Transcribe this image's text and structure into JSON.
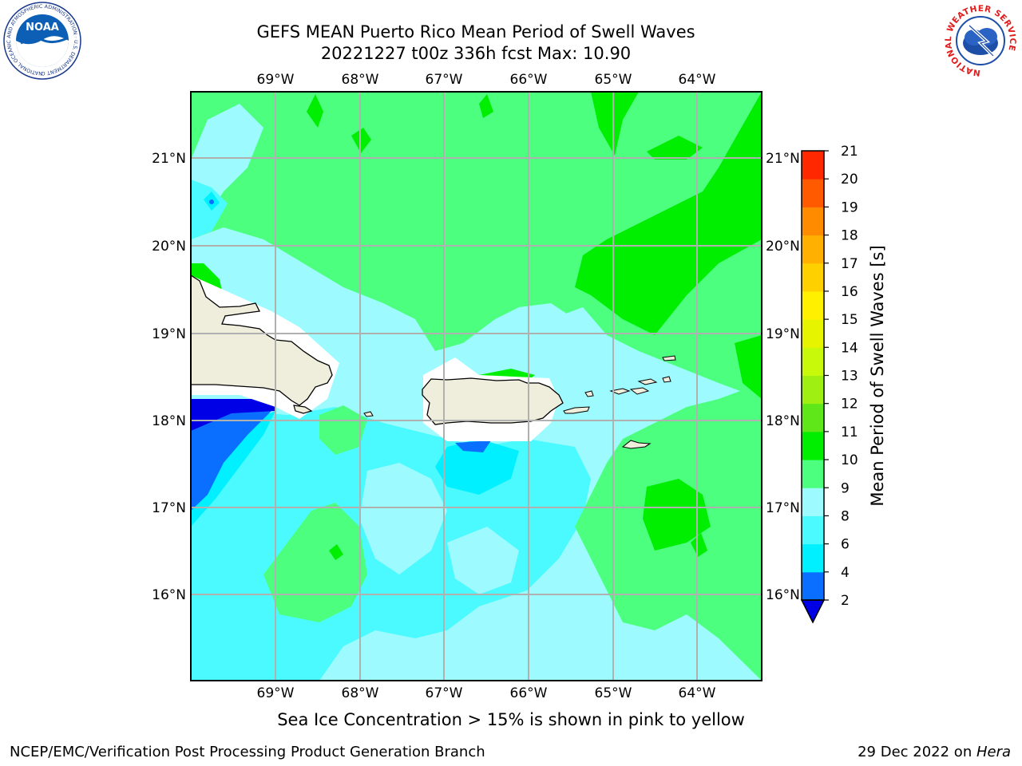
{
  "title_line1": "GEFS MEAN Puerto Rico Mean Period of Swell Waves",
  "title_line2": "20221227 t00z 336h fcst   Max: 10.90",
  "lon_labels": [
    "69°W",
    "68°W",
    "67°W",
    "66°W",
    "65°W",
    "64°W"
  ],
  "lat_labels": [
    "21°N",
    "20°N",
    "19°N",
    "18°N",
    "17°N",
    "16°N"
  ],
  "colorbar": {
    "title": "Mean Period of Swell Waves [s]",
    "ticks": [
      "2",
      "4",
      "6",
      "8",
      "9",
      "10",
      "11",
      "12",
      "13",
      "14",
      "15",
      "16",
      "17",
      "18",
      "19",
      "20",
      "21"
    ],
    "colors": [
      "#0a6fff",
      "#00f0ff",
      "#4afaff",
      "#9dfbff",
      "#4dff7e",
      "#00ee00",
      "#5fe71a",
      "#9ff012",
      "#c8f80a",
      "#e6f400",
      "#fff000",
      "#ffd000",
      "#ffb000",
      "#ff8c00",
      "#ff5a00",
      "#ff2800"
    ],
    "under_color": "#0000e6"
  },
  "note": "Sea Ice Concentration > 15% is shown in pink to yellow",
  "footer_left": "NCEP/EMC/Verification Post Processing Product Generation Branch",
  "footer_right_date": "29 Dec 2022 on ",
  "footer_right_host": "Hera",
  "logos": {
    "noaa_text": "NOAA",
    "noaa_ring": "NATIONAL OCEANIC AND ATMOSPHERIC ADMINISTRATION · U.S. DEPARTMENT OF COMMERCE",
    "nws_ring": "NATIONAL WEATHER SERVICE"
  }
}
